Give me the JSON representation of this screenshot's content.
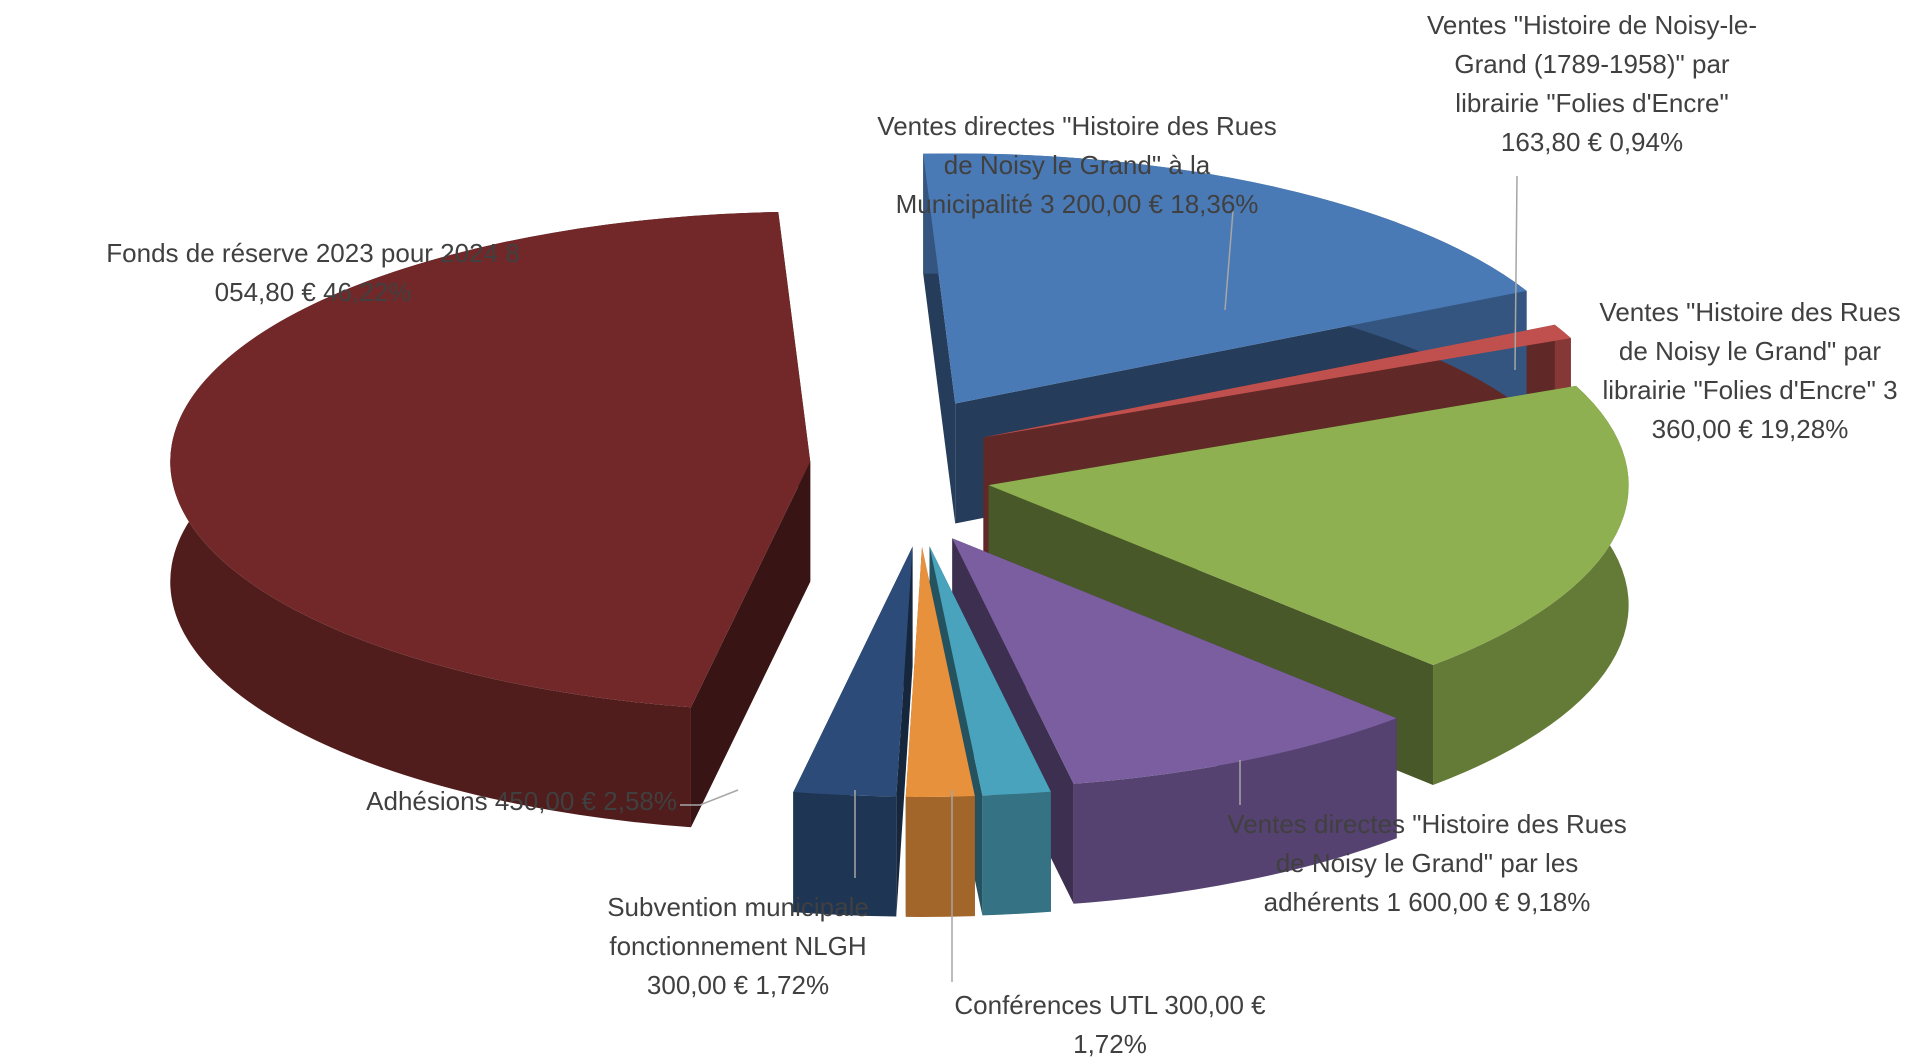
{
  "chart_data": {
    "type": "pie3d",
    "categories": [
      "Ventes directes \"Histoire des Rues de Noisy le Grand\" à la Municipalité",
      "Ventes \"Histoire de Noisy-le-Grand (1789-1958)\" par librairie \"Folies d'Encre\"",
      "Ventes \"Histoire des Rues de Noisy le Grand\" par librairie \"Folies d'Encre\"",
      "Ventes directes \"Histoire des Rues de Noisy le Grand\" par les adhérents",
      "Conférences UTL",
      "Subvention municipale fonctionnement NLGH",
      "Adhésions",
      "Fonds de réserve 2023 pour 2024"
    ],
    "amounts": [
      3200.0,
      163.8,
      3360.0,
      1600.0,
      300.0,
      300.0,
      450.0,
      8054.8
    ],
    "amount_labels": [
      "3 200,00 €",
      "163,80 €",
      "3 360,00 €",
      "1 600,00 €",
      "300,00 €",
      "300,00 €",
      "450,00 €",
      "8 054,80 €"
    ],
    "values": [
      18.36,
      0.94,
      19.28,
      9.18,
      1.72,
      1.72,
      2.58,
      46.22
    ],
    "value_labels": [
      "18,36%",
      "0,94%",
      "19,28%",
      "9,18%",
      "1,72%",
      "1,72%",
      "2,58%",
      "46,22%"
    ],
    "colors": [
      "#4a7ab5",
      "#c0504d",
      "#8fb050",
      "#7a5ea0",
      "#4aa3bd",
      "#e8913d",
      "#2c4b78",
      "#722828"
    ]
  }
}
